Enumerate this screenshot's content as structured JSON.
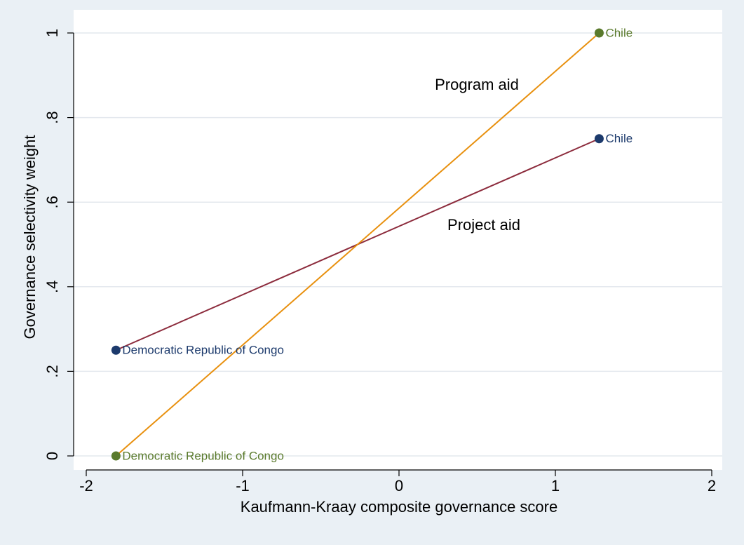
{
  "chart_data": {
    "type": "line",
    "x_label": "Kaufmann-Kraay composite governance score",
    "y_label": "Governance selectivity weight",
    "xlim": [
      -2,
      2
    ],
    "xticks": [
      -2,
      -1,
      0,
      1,
      2
    ],
    "ylim": [
      0,
      1
    ],
    "yticks": [
      0,
      {
        "value": 0.2,
        "label": ".2"
      },
      {
        "value": 0.4,
        "label": ".4"
      },
      {
        "value": 0.6,
        "label": ".6"
      },
      {
        "value": 0.8,
        "label": ".8"
      },
      1
    ],
    "grid": true,
    "series": [
      {
        "name": "Project aid",
        "color": "#8c2b3c",
        "marker_color": "#1c3a6c",
        "x": [
          -1.81,
          1.28
        ],
        "values": [
          0.25,
          0.75
        ],
        "point_labels": [
          "Democratic Republic of Congo",
          "Chile"
        ]
      },
      {
        "name": "Program aid",
        "color": "#e8900e",
        "marker_color": "#5a7a2c",
        "x": [
          -1.81,
          1.28
        ],
        "values": [
          0,
          1
        ],
        "point_labels": [
          "Democratic Republic of Congo",
          "Chile"
        ]
      }
    ]
  }
}
